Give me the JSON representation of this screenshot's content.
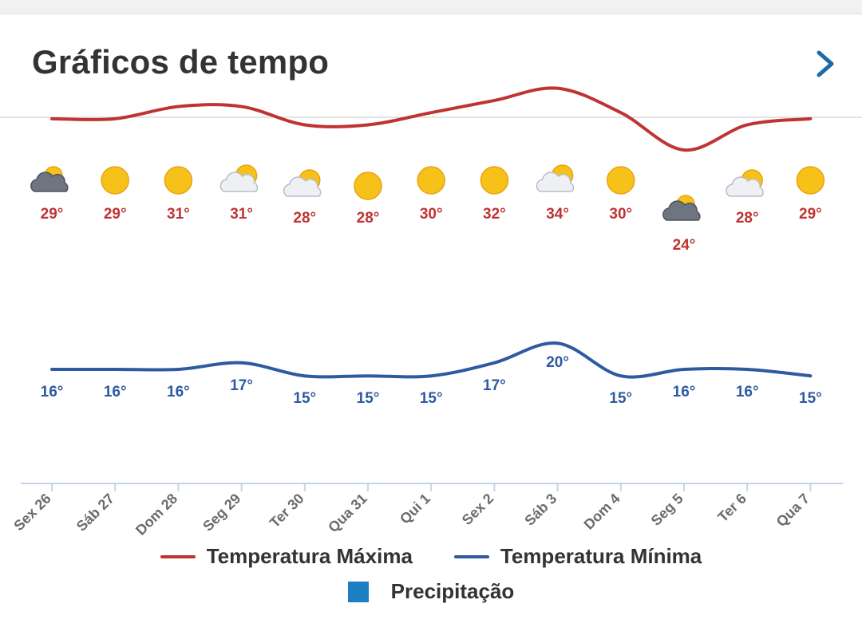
{
  "header": {
    "title": "Gráficos de tempo"
  },
  "colors": {
    "max": "#bf3333",
    "min": "#2d5aa0",
    "precip": "#1b7fc1",
    "axis": "#c7d3ea"
  },
  "chart_data": {
    "type": "line",
    "categories": [
      "Sex 26",
      "Sáb 27",
      "Dom 28",
      "Seg 29",
      "Ter 30",
      "Qua 31",
      "Qui 1",
      "Sex 2",
      "Sáb 3",
      "Dom 4",
      "Seg 5",
      "Ter 6",
      "Qua 7"
    ],
    "icons": [
      "cloudy-icon",
      "sun-icon",
      "sun-icon",
      "partly-cloudy-icon",
      "partly-cloudy-icon",
      "sun-icon",
      "sun-icon",
      "sun-icon",
      "partly-cloudy-icon",
      "sun-icon",
      "cloudy-icon",
      "partly-cloudy-icon",
      "sun-icon"
    ],
    "series": [
      {
        "name": "Temperatura Máxima",
        "values": [
          29,
          29,
          31,
          31,
          28,
          28,
          30,
          32,
          34,
          30,
          24,
          28,
          29
        ],
        "labels": [
          "29°",
          "29°",
          "31°",
          "31°",
          "28°",
          "28°",
          "30°",
          "32°",
          "34°",
          "30°",
          "24°",
          "28°",
          "29°"
        ]
      },
      {
        "name": "Temperatura Mínima",
        "values": [
          16,
          16,
          16,
          17,
          15,
          15,
          15,
          17,
          20,
          15,
          16,
          16,
          15
        ],
        "labels": [
          "16°",
          "16°",
          "16°",
          "17°",
          "15°",
          "15°",
          "15°",
          "17°",
          "20°",
          "15°",
          "16°",
          "16°",
          "15°"
        ]
      }
    ],
    "legend": {
      "max": "Temperatura Máxima",
      "min": "Temperatura Mínima",
      "precip": "Precipitação"
    }
  }
}
